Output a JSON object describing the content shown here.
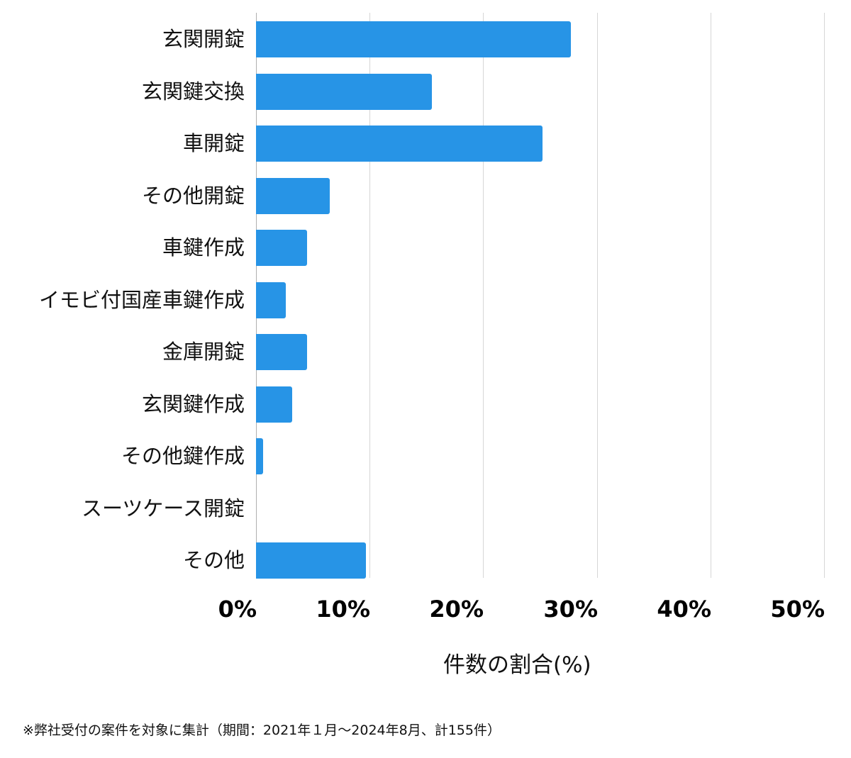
{
  "chart_data": {
    "type": "bar",
    "orientation": "horizontal",
    "title": "",
    "xlabel": "件数の割合(%)",
    "ylabel": "",
    "xlim": [
      0,
      50
    ],
    "x_ticks": [
      "0%",
      "10%",
      "20%",
      "30%",
      "40%",
      "50%"
    ],
    "grid": true,
    "legend": null,
    "bar_color": "#2794e6",
    "categories": [
      "玄関開錠",
      "玄関鍵交換",
      "車開錠",
      "その他開錠",
      "車鍵作成",
      "イモビ付国産車鍵作成",
      "金庫開錠",
      "玄関鍵作成",
      "その他鍵作成",
      "スーツケース開錠",
      "その他"
    ],
    "values": [
      27.7,
      15.5,
      25.2,
      6.5,
      4.5,
      2.6,
      4.5,
      3.2,
      0.6,
      0.0,
      9.7
    ],
    "footnote": "※弊社受付の案件を対象に集計（期間：2021年１月～2024年8月、計155件）"
  },
  "axis": {
    "ticks": [
      "0%",
      "10%",
      "20%",
      "30%",
      "40%",
      "50%"
    ],
    "xlabel": "件数の割合(%)"
  },
  "rows": [
    {
      "label": "玄関開錠",
      "value": 27.7
    },
    {
      "label": "玄関鍵交換",
      "value": 15.5
    },
    {
      "label": "車開錠",
      "value": 25.2
    },
    {
      "label": "その他開錠",
      "value": 6.5
    },
    {
      "label": "車鍵作成",
      "value": 4.5
    },
    {
      "label": "イモビ付国産車鍵作成",
      "value": 2.6
    },
    {
      "label": "金庫開錠",
      "value": 4.5
    },
    {
      "label": "玄関鍵作成",
      "value": 3.2
    },
    {
      "label": "その他鍵作成",
      "value": 0.6
    },
    {
      "label": "スーツケース開錠",
      "value": 0.0
    },
    {
      "label": "その他",
      "value": 9.7
    }
  ],
  "footnote": "※弊社受付の案件を対象に集計（期間：2021年１月～2024年8月、計155件）"
}
